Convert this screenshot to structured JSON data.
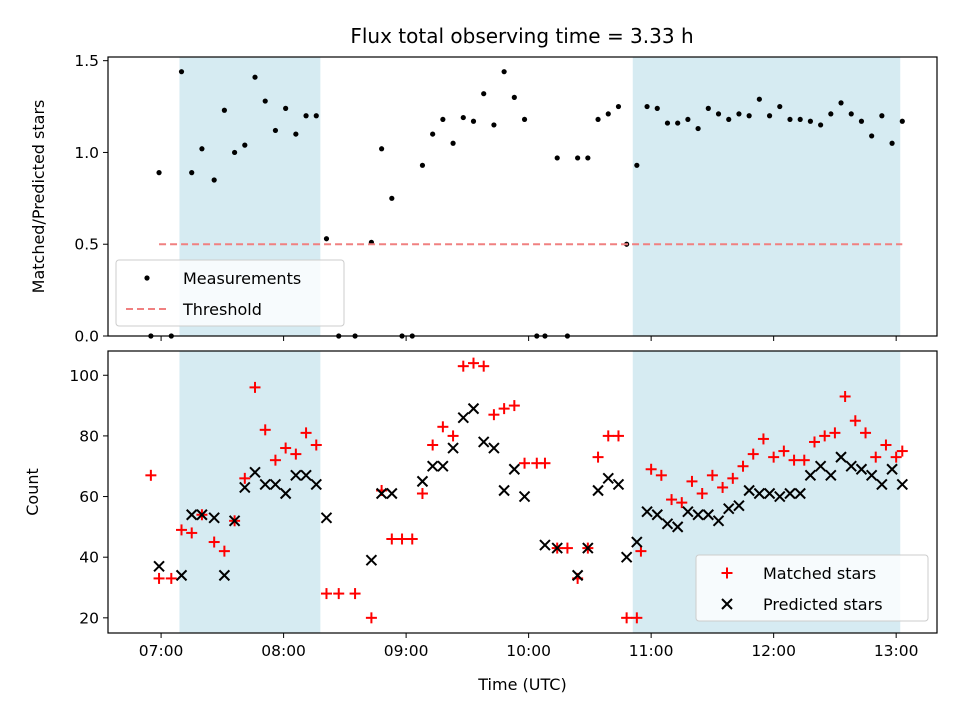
{
  "figure": {
    "title": "Flux total observing time = 3.33 h"
  },
  "chart_data": [
    {
      "type": "scatter",
      "title": "Flux total observing time = 3.33 h",
      "xlabel": "",
      "ylabel": "Matched/Predicted stars",
      "xlim": [
        "06:34",
        "13:20"
      ],
      "ylim": [
        0,
        1.52
      ],
      "yticks": [
        "0.0",
        "0.5",
        "1.0",
        "1.5"
      ],
      "shaded_intervals": [
        [
          "07:09",
          "08:18"
        ],
        [
          "10:51",
          "13:02"
        ]
      ],
      "legend_position": "lower-left",
      "series": [
        {
          "name": "Measurements",
          "marker": "dot",
          "color": "#000000",
          "points": [
            [
              "06:55",
              0.0
            ],
            [
              "06:59",
              0.89
            ],
            [
              "07:05",
              0.0
            ],
            [
              "07:10",
              1.44
            ],
            [
              "07:15",
              0.89
            ],
            [
              "07:20",
              1.02
            ],
            [
              "07:26",
              0.85
            ],
            [
              "07:31",
              1.23
            ],
            [
              "07:36",
              1.0
            ],
            [
              "07:41",
              1.04
            ],
            [
              "07:46",
              1.41
            ],
            [
              "07:51",
              1.28
            ],
            [
              "07:56",
              1.12
            ],
            [
              "08:01",
              1.24
            ],
            [
              "08:06",
              1.1
            ],
            [
              "08:11",
              1.2
            ],
            [
              "08:16",
              1.2
            ],
            [
              "08:21",
              0.53
            ],
            [
              "08:27",
              0.0
            ],
            [
              "08:35",
              0.0
            ],
            [
              "08:43",
              0.51
            ],
            [
              "08:48",
              1.02
            ],
            [
              "08:53",
              0.75
            ],
            [
              "08:58",
              0.0
            ],
            [
              "09:03",
              0.0
            ],
            [
              "09:08",
              0.93
            ],
            [
              "09:13",
              1.1
            ],
            [
              "09:18",
              1.18
            ],
            [
              "09:23",
              1.05
            ],
            [
              "09:28",
              1.19
            ],
            [
              "09:33",
              1.17
            ],
            [
              "09:38",
              1.32
            ],
            [
              "09:43",
              1.15
            ],
            [
              "09:48",
              1.44
            ],
            [
              "09:53",
              1.3
            ],
            [
              "09:58",
              1.18
            ],
            [
              "10:04",
              0.0
            ],
            [
              "10:08",
              0.0
            ],
            [
              "10:14",
              0.97
            ],
            [
              "10:19",
              0.0
            ],
            [
              "10:24",
              0.97
            ],
            [
              "10:29",
              0.97
            ],
            [
              "10:34",
              1.18
            ],
            [
              "10:39",
              1.21
            ],
            [
              "10:44",
              1.25
            ],
            [
              "10:48",
              0.5
            ],
            [
              "10:53",
              0.93
            ],
            [
              "10:58",
              1.25
            ],
            [
              "11:03",
              1.24
            ],
            [
              "11:08",
              1.16
            ],
            [
              "11:13",
              1.16
            ],
            [
              "11:18",
              1.18
            ],
            [
              "11:23",
              1.13
            ],
            [
              "11:28",
              1.24
            ],
            [
              "11:33",
              1.21
            ],
            [
              "11:38",
              1.18
            ],
            [
              "11:43",
              1.21
            ],
            [
              "11:48",
              1.2
            ],
            [
              "11:53",
              1.29
            ],
            [
              "11:58",
              1.2
            ],
            [
              "12:03",
              1.25
            ],
            [
              "12:08",
              1.18
            ],
            [
              "12:13",
              1.18
            ],
            [
              "12:18",
              1.17
            ],
            [
              "12:23",
              1.15
            ],
            [
              "12:28",
              1.21
            ],
            [
              "12:33",
              1.27
            ],
            [
              "12:38",
              1.21
            ],
            [
              "12:43",
              1.17
            ],
            [
              "12:48",
              1.09
            ],
            [
              "12:53",
              1.2
            ],
            [
              "12:58",
              1.05
            ],
            [
              "13:03",
              1.17
            ]
          ]
        },
        {
          "name": "Threshold",
          "line": "dashed",
          "color": "#f08080",
          "points": [
            [
              "06:59",
              0.5
            ],
            [
              "13:03",
              0.5
            ]
          ]
        }
      ]
    },
    {
      "type": "scatter",
      "xlabel": "Time (UTC)",
      "ylabel": "Count",
      "xlim": [
        "06:34",
        "13:20"
      ],
      "ylim": [
        15,
        108
      ],
      "xticks": [
        "07:00",
        "08:00",
        "09:00",
        "10:00",
        "11:00",
        "12:00",
        "13:00"
      ],
      "yticks": [
        "20",
        "40",
        "60",
        "80",
        "100"
      ],
      "shaded_intervals": [
        [
          "07:09",
          "08:18"
        ],
        [
          "10:51",
          "13:02"
        ]
      ],
      "legend_position": "lower-right",
      "series": [
        {
          "name": "Matched stars",
          "marker": "plus",
          "color": "#ff0000",
          "points": [
            [
              "06:55",
              67
            ],
            [
              "06:59",
              33
            ],
            [
              "07:05",
              33
            ],
            [
              "07:10",
              49
            ],
            [
              "07:15",
              48
            ],
            [
              "07:20",
              54
            ],
            [
              "07:26",
              45
            ],
            [
              "07:31",
              42
            ],
            [
              "07:36",
              52
            ],
            [
              "07:41",
              66
            ],
            [
              "07:46",
              96
            ],
            [
              "07:51",
              82
            ],
            [
              "07:56",
              72
            ],
            [
              "08:01",
              76
            ],
            [
              "08:06",
              74
            ],
            [
              "08:11",
              81
            ],
            [
              "08:16",
              77
            ],
            [
              "08:21",
              28
            ],
            [
              "08:27",
              28
            ],
            [
              "08:35",
              28
            ],
            [
              "08:43",
              20
            ],
            [
              "08:48",
              62
            ],
            [
              "08:53",
              46
            ],
            [
              "08:58",
              46
            ],
            [
              "09:03",
              46
            ],
            [
              "09:08",
              61
            ],
            [
              "09:13",
              77
            ],
            [
              "09:18",
              83
            ],
            [
              "09:23",
              80
            ],
            [
              "09:28",
              103
            ],
            [
              "09:33",
              104
            ],
            [
              "09:38",
              103
            ],
            [
              "09:43",
              87
            ],
            [
              "09:48",
              89
            ],
            [
              "09:53",
              90
            ],
            [
              "09:58",
              71
            ],
            [
              "10:04",
              71
            ],
            [
              "10:08",
              71
            ],
            [
              "10:14",
              43
            ],
            [
              "10:19",
              43
            ],
            [
              "10:24",
              33
            ],
            [
              "10:29",
              43
            ],
            [
              "10:34",
              73
            ],
            [
              "10:39",
              80
            ],
            [
              "10:44",
              80
            ],
            [
              "10:48",
              20
            ],
            [
              "10:53",
              20
            ],
            [
              "10:55",
              42
            ],
            [
              "11:00",
              69
            ],
            [
              "11:05",
              67
            ],
            [
              "11:10",
              59
            ],
            [
              "11:15",
              58
            ],
            [
              "11:20",
              65
            ],
            [
              "11:25",
              61
            ],
            [
              "11:30",
              67
            ],
            [
              "11:35",
              63
            ],
            [
              "11:40",
              66
            ],
            [
              "11:45",
              70
            ],
            [
              "11:50",
              74
            ],
            [
              "11:55",
              79
            ],
            [
              "12:00",
              73
            ],
            [
              "12:05",
              75
            ],
            [
              "12:10",
              72
            ],
            [
              "12:15",
              72
            ],
            [
              "12:20",
              78
            ],
            [
              "12:25",
              80
            ],
            [
              "12:30",
              81
            ],
            [
              "12:35",
              93
            ],
            [
              "12:40",
              85
            ],
            [
              "12:45",
              81
            ],
            [
              "12:50",
              73
            ],
            [
              "12:55",
              77
            ],
            [
              "13:00",
              73
            ],
            [
              "13:03",
              75
            ]
          ]
        },
        {
          "name": "Predicted stars",
          "marker": "x",
          "color": "#000000",
          "points": [
            [
              "06:59",
              37
            ],
            [
              "07:10",
              34
            ],
            [
              "07:15",
              54
            ],
            [
              "07:20",
              54
            ],
            [
              "07:26",
              53
            ],
            [
              "07:31",
              34
            ],
            [
              "07:36",
              52
            ],
            [
              "07:41",
              63
            ],
            [
              "07:46",
              68
            ],
            [
              "07:51",
              64
            ],
            [
              "07:56",
              64
            ],
            [
              "08:01",
              61
            ],
            [
              "08:06",
              67
            ],
            [
              "08:11",
              67
            ],
            [
              "08:16",
              64
            ],
            [
              "08:21",
              53
            ],
            [
              "08:43",
              39
            ],
            [
              "08:48",
              61
            ],
            [
              "08:53",
              61
            ],
            [
              "09:08",
              65
            ],
            [
              "09:13",
              70
            ],
            [
              "09:18",
              70
            ],
            [
              "09:23",
              76
            ],
            [
              "09:28",
              86
            ],
            [
              "09:33",
              89
            ],
            [
              "09:38",
              78
            ],
            [
              "09:43",
              76
            ],
            [
              "09:48",
              62
            ],
            [
              "09:53",
              69
            ],
            [
              "09:58",
              60
            ],
            [
              "10:08",
              44
            ],
            [
              "10:14",
              43
            ],
            [
              "10:24",
              34
            ],
            [
              "10:29",
              43
            ],
            [
              "10:34",
              62
            ],
            [
              "10:39",
              66
            ],
            [
              "10:44",
              64
            ],
            [
              "10:48",
              40
            ],
            [
              "10:53",
              45
            ],
            [
              "10:58",
              55
            ],
            [
              "11:03",
              54
            ],
            [
              "11:08",
              51
            ],
            [
              "11:13",
              50
            ],
            [
              "11:18",
              55
            ],
            [
              "11:23",
              54
            ],
            [
              "11:28",
              54
            ],
            [
              "11:33",
              52
            ],
            [
              "11:38",
              56
            ],
            [
              "11:43",
              57
            ],
            [
              "11:48",
              62
            ],
            [
              "11:53",
              61
            ],
            [
              "11:58",
              61
            ],
            [
              "12:03",
              60
            ],
            [
              "12:08",
              61
            ],
            [
              "12:13",
              61
            ],
            [
              "12:18",
              67
            ],
            [
              "12:23",
              70
            ],
            [
              "12:28",
              67
            ],
            [
              "12:33",
              73
            ],
            [
              "12:38",
              70
            ],
            [
              "12:43",
              69
            ],
            [
              "12:48",
              67
            ],
            [
              "12:53",
              64
            ],
            [
              "12:58",
              69
            ],
            [
              "13:03",
              64
            ]
          ]
        }
      ]
    }
  ]
}
